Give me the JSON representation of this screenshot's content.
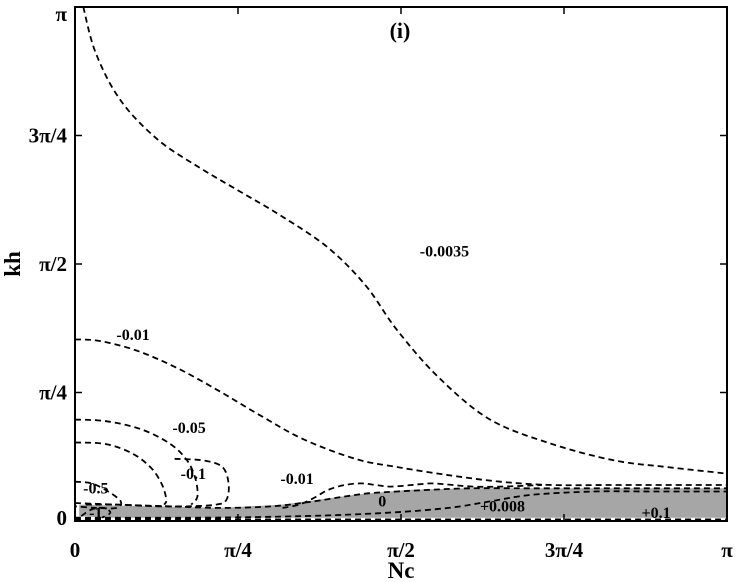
{
  "chart_data": {
    "type": "contour",
    "panel_label": "(i)",
    "xlabel": "Nc",
    "ylabel": "kh",
    "xlim": [
      0,
      3.14159
    ],
    "ylim": [
      0,
      3.14159
    ],
    "xticks": [
      {
        "value": 0,
        "label": "0"
      },
      {
        "value": 0.7854,
        "label": "π/4"
      },
      {
        "value": 1.5708,
        "label": "π/2"
      },
      {
        "value": 2.3562,
        "label": "3π/4"
      },
      {
        "value": 3.14159,
        "label": "π"
      }
    ],
    "yticks": [
      {
        "value": 0,
        "label": "0"
      },
      {
        "value": 0.7854,
        "label": "π/4"
      },
      {
        "value": 1.5708,
        "label": "π/2"
      },
      {
        "value": 2.3562,
        "label": "3π/4"
      },
      {
        "value": 3.14159,
        "label": "π"
      }
    ],
    "fill_color": "#a6a6a6",
    "shaded_region": [
      [
        0.02,
        0.03
      ],
      [
        0.02,
        0.1
      ],
      [
        0.35,
        0.09
      ],
      [
        0.7,
        0.08
      ],
      [
        1.0,
        0.1
      ],
      [
        1.35,
        0.16
      ],
      [
        1.6,
        0.19
      ],
      [
        1.9,
        0.2
      ],
      [
        2.2,
        0.2
      ],
      [
        2.6,
        0.2
      ],
      [
        3.14159,
        0.2
      ],
      [
        3.14159,
        0.02
      ],
      [
        2.5,
        0.02
      ],
      [
        1.8,
        0.02
      ],
      [
        1.0,
        0.02
      ],
      [
        0.5,
        0.02
      ],
      [
        0.15,
        0.02
      ]
    ],
    "contours": [
      {
        "level": "-0.0035",
        "label": "-0.0035",
        "label_at": [
          1.78,
          1.64
        ],
        "points": [
          [
            0.04,
            3.14159
          ],
          [
            0.1,
            2.86
          ],
          [
            0.22,
            2.57
          ],
          [
            0.4,
            2.33
          ],
          [
            0.6,
            2.16
          ],
          [
            0.8,
            2.01
          ],
          [
            1.0,
            1.86
          ],
          [
            1.22,
            1.67
          ],
          [
            1.4,
            1.44
          ],
          [
            1.55,
            1.17
          ],
          [
            1.75,
            0.88
          ],
          [
            2.0,
            0.62
          ],
          [
            2.3,
            0.47
          ],
          [
            2.6,
            0.37
          ],
          [
            2.85,
            0.33
          ],
          [
            3.14159,
            0.29
          ]
        ]
      },
      {
        "level": "-0.01",
        "label": "-0.01",
        "label_at": [
          0.28,
          1.13
        ],
        "points": [
          [
            0.0,
            1.11
          ],
          [
            0.12,
            1.1
          ],
          [
            0.3,
            1.04
          ],
          [
            0.5,
            0.93
          ],
          [
            0.7,
            0.79
          ],
          [
            0.9,
            0.64
          ],
          [
            1.1,
            0.5
          ],
          [
            1.35,
            0.38
          ],
          [
            1.55,
            0.33
          ],
          [
            1.8,
            0.28
          ],
          [
            2.05,
            0.24
          ],
          [
            2.3,
            0.22
          ],
          [
            2.6,
            0.22
          ],
          [
            3.14159,
            0.22
          ]
        ]
      },
      {
        "level": "-0.05",
        "label": "-0.05",
        "label_at": [
          0.55,
          0.56
        ],
        "points": [
          [
            0.0,
            0.62
          ],
          [
            0.15,
            0.61
          ],
          [
            0.32,
            0.56
          ],
          [
            0.46,
            0.47
          ],
          [
            0.54,
            0.37
          ],
          [
            0.58,
            0.26
          ],
          [
            0.59,
            0.15
          ],
          [
            0.56,
            0.1
          ]
        ]
      },
      {
        "level": "-0.05b",
        "label": "",
        "label_at": [
          0,
          0
        ],
        "points": [
          [
            0.0,
            0.48
          ],
          [
            0.15,
            0.47
          ],
          [
            0.28,
            0.41
          ],
          [
            0.37,
            0.32
          ],
          [
            0.42,
            0.22
          ],
          [
            0.44,
            0.13
          ],
          [
            0.43,
            0.1
          ]
        ]
      },
      {
        "level": "-0.1",
        "label": "-0.1",
        "label_at": [
          0.57,
          0.28
        ],
        "points": [
          [
            0.48,
            0.38
          ],
          [
            0.62,
            0.37
          ],
          [
            0.71,
            0.33
          ],
          [
            0.74,
            0.23
          ],
          [
            0.73,
            0.13
          ],
          [
            0.68,
            0.1
          ],
          [
            0.55,
            0.09
          ],
          [
            0.4,
            0.09
          ],
          [
            0.2,
            0.1
          ],
          [
            0.05,
            0.1
          ]
        ]
      },
      {
        "level": "-0.5",
        "label": "-0.5",
        "label_at": [
          0.1,
          0.19
        ],
        "points": [
          [
            0.0,
            0.24
          ],
          [
            0.08,
            0.23
          ],
          [
            0.16,
            0.18
          ],
          [
            0.22,
            0.12
          ],
          [
            0.2,
            0.08
          ],
          [
            0.1,
            0.08
          ],
          [
            0.0,
            0.09
          ]
        ]
      },
      {
        "level": "-1",
        "label": "-1",
        "label_at": [
          0.1,
          0.04
        ],
        "points": [
          [
            0.03,
            0.03
          ],
          [
            0.08,
            0.07
          ],
          [
            0.14,
            0.08
          ],
          [
            0.17,
            0.05
          ],
          [
            0.13,
            0.02
          ]
        ]
      },
      {
        "level": "-0.01b",
        "label": "-0.01",
        "label_at": [
          1.07,
          0.25
        ],
        "points": [
          [
            1.0,
            0.08
          ],
          [
            1.08,
            0.1
          ],
          [
            1.15,
            0.14
          ],
          [
            1.22,
            0.19
          ],
          [
            1.3,
            0.22
          ],
          [
            1.38,
            0.23
          ],
          [
            1.45,
            0.22
          ],
          [
            1.52,
            0.21
          ],
          [
            1.62,
            0.22
          ],
          [
            1.72,
            0.23
          ],
          [
            1.82,
            0.22
          ],
          [
            1.92,
            0.21
          ],
          [
            2.05,
            0.21
          ],
          [
            2.25,
            0.22
          ]
        ]
      },
      {
        "level": "0",
        "label": "0",
        "label_at": [
          1.48,
          0.11
        ],
        "points": [
          [
            0.0,
            0.11
          ],
          [
            0.2,
            0.1
          ],
          [
            0.45,
            0.09
          ],
          [
            0.7,
            0.08
          ],
          [
            0.95,
            0.09
          ],
          [
            1.15,
            0.12
          ],
          [
            1.3,
            0.15
          ],
          [
            1.42,
            0.17
          ],
          [
            1.55,
            0.18
          ],
          [
            1.7,
            0.19
          ],
          [
            1.9,
            0.2
          ],
          [
            2.2,
            0.2
          ],
          [
            2.6,
            0.2
          ],
          [
            3.14159,
            0.2
          ]
        ]
      },
      {
        "level": "+0.008",
        "label": "+0.008",
        "label_at": [
          2.06,
          0.08
        ],
        "points": [
          [
            0.0,
            0.02
          ],
          [
            0.6,
            0.02
          ],
          [
            1.1,
            0.03
          ],
          [
            1.5,
            0.05
          ],
          [
            1.8,
            0.08
          ],
          [
            2.0,
            0.12
          ],
          [
            2.2,
            0.16
          ],
          [
            2.5,
            0.18
          ],
          [
            2.8,
            0.18
          ],
          [
            3.14159,
            0.18
          ]
        ]
      },
      {
        "level": "+0.1",
        "label": "+0.1",
        "label_at": [
          2.8,
          0.04
        ],
        "points": [
          [
            0.0,
            0.01
          ],
          [
            1.5,
            0.01
          ],
          [
            2.3,
            0.01
          ],
          [
            3.14159,
            0.01
          ]
        ]
      }
    ]
  }
}
